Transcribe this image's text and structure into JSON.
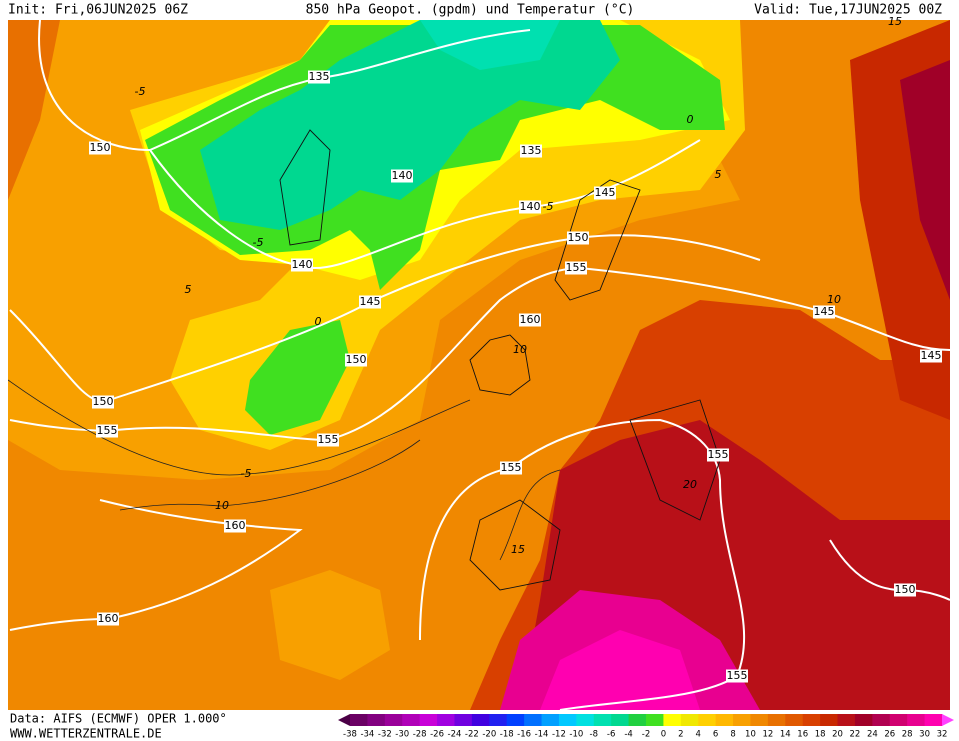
{
  "header": {
    "init": "Init: Fri,06JUN2025 06Z",
    "title": "850 hPa Geopot. (gpdm) und Temperatur (°C)",
    "valid": "Valid: Tue,17JUN2025 00Z"
  },
  "footer": {
    "source": "Data: AIFS (ECMWF) OPER 1.000°",
    "website": "WWW.WETTERZENTRALE.DE"
  },
  "contour_labels": [
    135,
    150,
    140,
    135,
    145,
    140,
    150,
    155,
    140,
    145,
    160,
    145,
    145,
    150,
    150,
    155,
    155,
    155,
    155,
    160,
    160,
    150,
    155
  ],
  "isotherm_labels": [
    -5,
    -5,
    0,
    -5,
    5,
    0,
    10,
    -5,
    10,
    15,
    5,
    10,
    15,
    20
  ],
  "legend": {
    "labels": [
      -38,
      -34,
      -32,
      -30,
      -28,
      -26,
      -24,
      -22,
      -20,
      -18,
      -16,
      -14,
      -12,
      -10,
      -8,
      -6,
      -4,
      -2,
      0,
      2,
      4,
      6,
      8,
      10,
      12,
      14,
      16,
      18,
      20,
      22,
      24,
      26,
      28,
      30,
      32
    ],
    "colors": [
      "#4b0046",
      "#6a0064",
      "#820080",
      "#9a009a",
      "#b000b8",
      "#c800d8",
      "#a000e0",
      "#7000e0",
      "#4000e0",
      "#2020f0",
      "#0040ff",
      "#0070ff",
      "#00a0ff",
      "#00c8ff",
      "#00e0e0",
      "#00e0b0",
      "#00d890",
      "#20d040",
      "#40e020",
      "#ffff00",
      "#f0e800",
      "#ffd000",
      "#ffb800",
      "#f8a000",
      "#f08800",
      "#e87000",
      "#e05800",
      "#d84000",
      "#c82800",
      "#b81018",
      "#a00028",
      "#b00050",
      "#d00070",
      "#e80090",
      "#ff00b0",
      "#ff40ff"
    ]
  }
}
